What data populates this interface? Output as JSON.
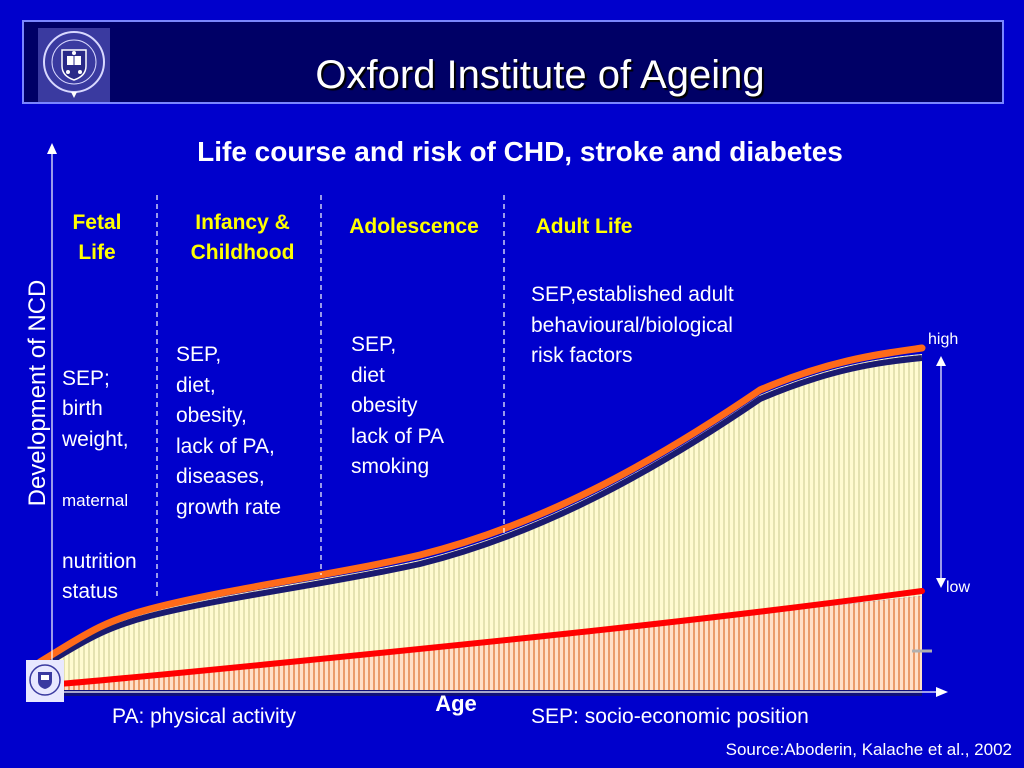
{
  "header": {
    "title": "Oxford Institute of Ageing"
  },
  "slide": {
    "subtitle": "Life course and risk of CHD, stroke and diabetes",
    "stages": [
      {
        "label": "Fetal\nLife"
      },
      {
        "label": "Infancy &\nChildhood"
      },
      {
        "label": "Adolescence"
      },
      {
        "label": "Adult Life"
      }
    ],
    "factors": {
      "fetal_main": "SEP;\nbirth\nweight,",
      "fetal_small": "maternal",
      "fetal_rest": "nutrition\nstatus",
      "infancy": "SEP,\ndiet,\nobesity,\nlack of PA,\ndiseases,\ngrowth rate",
      "adolescence": "SEP,\ndiet\nobesity\nlack of PA\nsmoking",
      "adult": "SEP,established adult\nbehavioural/biological\nrisk factors"
    },
    "y_axis_label": "Development of NCD",
    "x_axis_label": "Age",
    "range_high": "high",
    "range_low": "low",
    "footnote_pa": "PA: physical activity",
    "footnote_sep": "SEP: socio-economic position",
    "source": "Source:Aboderin, Kalache et al., 2002"
  },
  "colors": {
    "background": "#0000cc",
    "header_band": "#000066",
    "stage_label": "#ffff00",
    "high_curve": "#ff6a1a",
    "low_curve": "#ff0000",
    "upper_fill": "#fffbd0",
    "lower_fill": "#ffe0c8"
  }
}
